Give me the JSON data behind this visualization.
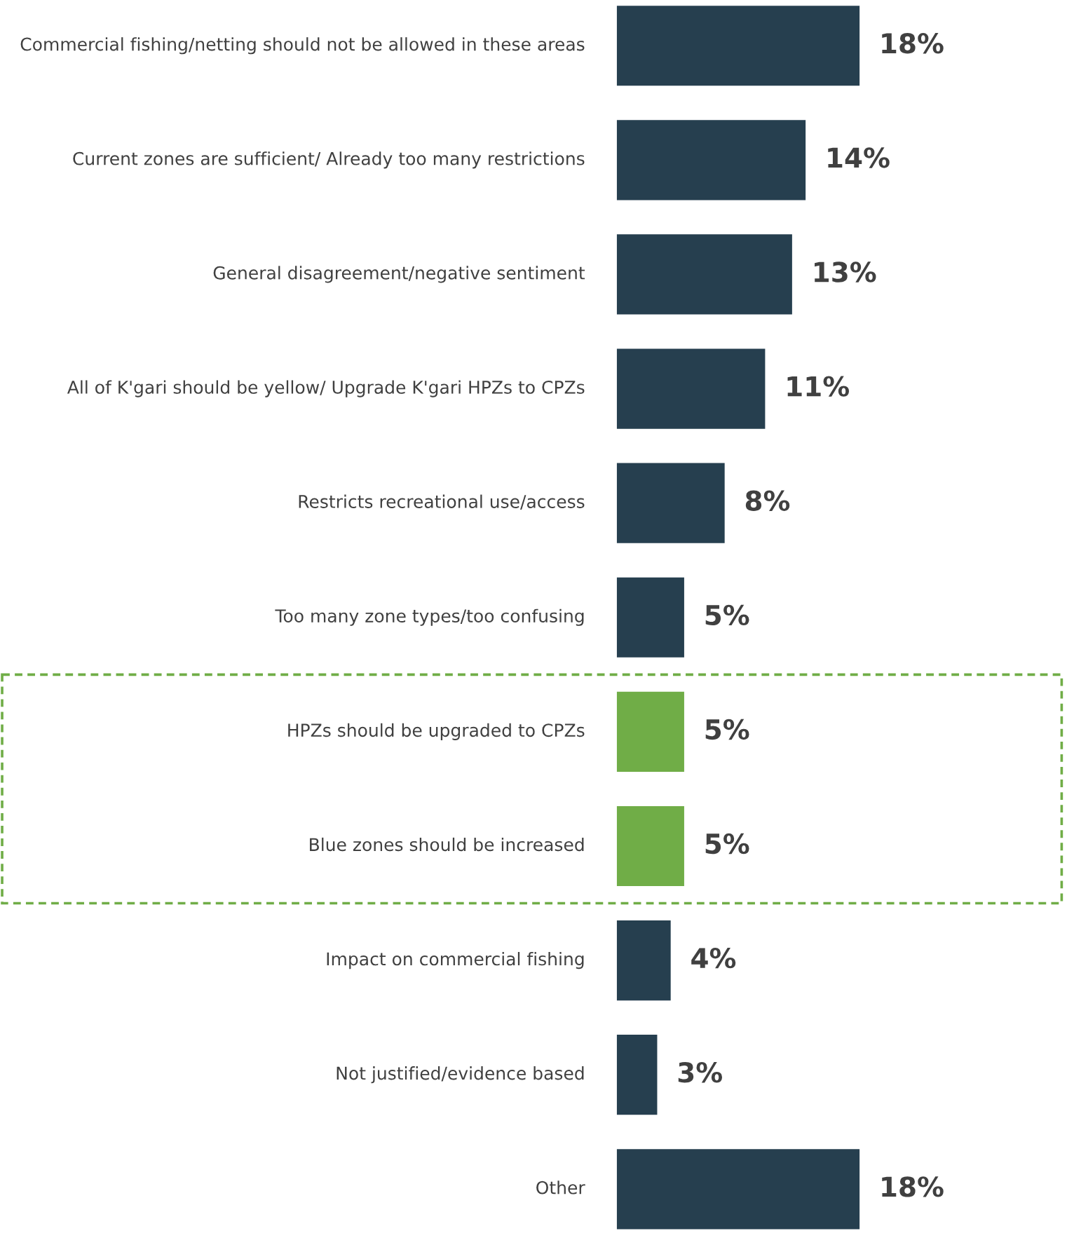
{
  "chart_data": {
    "type": "bar",
    "orientation": "horizontal",
    "legend": false,
    "categories": [
      "Commercial fishing/netting should not be allowed in these areas",
      "Current zones are sufficient/ Already too many restrictions",
      "General disagreement/negative sentiment",
      "All of K'gari should be yellow/ Upgrade K'gari HPZs to CPZs",
      "Restricts recreational use/access",
      "Too many zone types/too confusing",
      "HPZs should be upgraded to CPZs",
      "Blue zones should be increased",
      "Impact on commercial fishing",
      "Not justified/evidence based",
      "Other"
    ],
    "values": [
      18,
      14,
      13,
      11,
      8,
      5,
      5,
      5,
      4,
      3,
      18
    ],
    "value_labels": [
      "18%",
      "14%",
      "13%",
      "11%",
      "8%",
      "5%",
      "5%",
      "5%",
      "4%",
      "3%",
      "18%"
    ],
    "colors": [
      "#263f4f",
      "#263f4f",
      "#263f4f",
      "#263f4f",
      "#263f4f",
      "#263f4f",
      "#70ad47",
      "#70ad47",
      "#263f4f",
      "#263f4f",
      "#263f4f"
    ]
  }
}
